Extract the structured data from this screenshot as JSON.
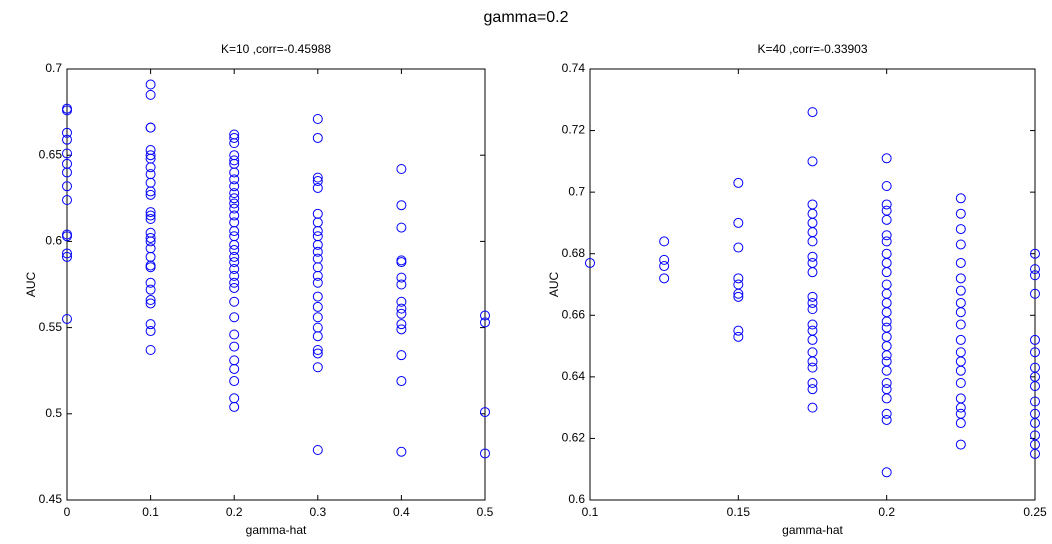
{
  "title": "gamma=0.2",
  "chart_data": [
    {
      "type": "scatter",
      "title": "K=10 ,corr=-0.45988",
      "xlabel": "gamma-hat",
      "ylabel": "AUC",
      "xlim": [
        0,
        0.5
      ],
      "xticks": [
        0,
        0.1,
        0.2,
        0.3,
        0.4,
        0.5
      ],
      "ylim": [
        0.45,
        0.7
      ],
      "yticks": [
        0.45,
        0.5,
        0.55,
        0.6,
        0.65,
        0.7
      ],
      "series": [
        {
          "color": "#0000ff",
          "x": [
            0,
            0,
            0,
            0,
            0,
            0,
            0,
            0,
            0,
            0,
            0,
            0,
            0,
            0,
            0.1,
            0.1,
            0.1,
            0.1,
            0.1,
            0.1,
            0.1,
            0.1,
            0.1,
            0.1,
            0.1,
            0.1,
            0.1,
            0.1,
            0.1,
            0.1,
            0.1,
            0.1,
            0.1,
            0.1,
            0.1,
            0.1,
            0.1,
            0.1,
            0.1,
            0.1,
            0.1,
            0.1,
            0.1,
            0.2,
            0.2,
            0.2,
            0.2,
            0.2,
            0.2,
            0.2,
            0.2,
            0.2,
            0.2,
            0.2,
            0.2,
            0.2,
            0.2,
            0.2,
            0.2,
            0.2,
            0.2,
            0.2,
            0.2,
            0.2,
            0.2,
            0.2,
            0.2,
            0.2,
            0.2,
            0.2,
            0.2,
            0.2,
            0.2,
            0.2,
            0.2,
            0.2,
            0.2,
            0.3,
            0.3,
            0.3,
            0.3,
            0.3,
            0.3,
            0.3,
            0.3,
            0.3,
            0.3,
            0.3,
            0.3,
            0.3,
            0.3,
            0.3,
            0.3,
            0.3,
            0.3,
            0.3,
            0.3,
            0.3,
            0.3,
            0.3,
            0.3,
            0.4,
            0.4,
            0.4,
            0.4,
            0.4,
            0.4,
            0.4,
            0.4,
            0.4,
            0.4,
            0.4,
            0.4,
            0.4,
            0.4,
            0.4,
            0.5,
            0.5,
            0.5,
            0.5
          ],
          "values": [
            0.677,
            0.676,
            0.663,
            0.659,
            0.651,
            0.645,
            0.64,
            0.632,
            0.624,
            0.604,
            0.603,
            0.593,
            0.591,
            0.555,
            0.691,
            0.685,
            0.666,
            0.666,
            0.653,
            0.65,
            0.648,
            0.643,
            0.639,
            0.634,
            0.629,
            0.627,
            0.617,
            0.615,
            0.613,
            0.605,
            0.602,
            0.6,
            0.596,
            0.591,
            0.586,
            0.585,
            0.576,
            0.572,
            0.566,
            0.564,
            0.552,
            0.548,
            0.537,
            0.662,
            0.66,
            0.657,
            0.65,
            0.647,
            0.645,
            0.64,
            0.636,
            0.632,
            0.628,
            0.625,
            0.622,
            0.619,
            0.615,
            0.611,
            0.606,
            0.603,
            0.598,
            0.595,
            0.591,
            0.588,
            0.584,
            0.58,
            0.576,
            0.573,
            0.565,
            0.556,
            0.546,
            0.539,
            0.531,
            0.526,
            0.519,
            0.509,
            0.504,
            0.671,
            0.66,
            0.637,
            0.635,
            0.631,
            0.616,
            0.611,
            0.606,
            0.603,
            0.598,
            0.594,
            0.59,
            0.585,
            0.58,
            0.576,
            0.568,
            0.562,
            0.556,
            0.55,
            0.545,
            0.537,
            0.535,
            0.527,
            0.479,
            0.642,
            0.621,
            0.608,
            0.589,
            0.588,
            0.579,
            0.575,
            0.565,
            0.561,
            0.558,
            0.552,
            0.549,
            0.534,
            0.519,
            0.478,
            0.557,
            0.553,
            0.501,
            0.477
          ]
        }
      ]
    },
    {
      "type": "scatter",
      "title": "K=40 ,corr=-0.33903",
      "xlabel": "gamma-hat",
      "ylabel": "AUC",
      "xlim": [
        0.1,
        0.25
      ],
      "xticks": [
        0.1,
        0.15,
        0.2,
        0.25
      ],
      "ylim": [
        0.6,
        0.74
      ],
      "yticks": [
        0.6,
        0.62,
        0.64,
        0.66,
        0.68,
        0.7,
        0.72,
        0.74
      ],
      "series": [
        {
          "color": "#0000ff",
          "x": [
            0.1,
            0.125,
            0.125,
            0.125,
            0.125,
            0.15,
            0.15,
            0.15,
            0.15,
            0.15,
            0.15,
            0.15,
            0.15,
            0.15,
            0.175,
            0.175,
            0.175,
            0.175,
            0.175,
            0.175,
            0.175,
            0.175,
            0.175,
            0.175,
            0.175,
            0.175,
            0.175,
            0.175,
            0.175,
            0.175,
            0.175,
            0.175,
            0.175,
            0.175,
            0.175,
            0.175,
            0.2,
            0.2,
            0.2,
            0.2,
            0.2,
            0.2,
            0.2,
            0.2,
            0.2,
            0.2,
            0.2,
            0.2,
            0.2,
            0.2,
            0.2,
            0.2,
            0.2,
            0.2,
            0.2,
            0.2,
            0.2,
            0.2,
            0.2,
            0.2,
            0.2,
            0.2,
            0.2,
            0.225,
            0.225,
            0.225,
            0.225,
            0.225,
            0.225,
            0.225,
            0.225,
            0.225,
            0.225,
            0.225,
            0.225,
            0.225,
            0.225,
            0.225,
            0.225,
            0.225,
            0.225,
            0.225,
            0.225,
            0.25,
            0.25,
            0.25,
            0.25,
            0.25,
            0.25,
            0.25,
            0.25,
            0.25,
            0.25,
            0.25,
            0.25,
            0.25,
            0.25,
            0.25
          ],
          "values": [
            0.677,
            0.684,
            0.678,
            0.676,
            0.672,
            0.703,
            0.69,
            0.682,
            0.672,
            0.67,
            0.667,
            0.666,
            0.655,
            0.653,
            0.726,
            0.71,
            0.696,
            0.693,
            0.69,
            0.687,
            0.684,
            0.679,
            0.677,
            0.674,
            0.666,
            0.664,
            0.662,
            0.657,
            0.655,
            0.652,
            0.648,
            0.645,
            0.643,
            0.638,
            0.636,
            0.63,
            0.711,
            0.702,
            0.696,
            0.694,
            0.691,
            0.686,
            0.684,
            0.68,
            0.677,
            0.674,
            0.67,
            0.667,
            0.664,
            0.661,
            0.658,
            0.656,
            0.653,
            0.65,
            0.647,
            0.645,
            0.642,
            0.638,
            0.636,
            0.633,
            0.628,
            0.626,
            0.609,
            0.698,
            0.693,
            0.688,
            0.683,
            0.677,
            0.672,
            0.668,
            0.664,
            0.661,
            0.657,
            0.652,
            0.648,
            0.645,
            0.642,
            0.638,
            0.633,
            0.63,
            0.628,
            0.625,
            0.618,
            0.68,
            0.675,
            0.673,
            0.667,
            0.652,
            0.648,
            0.643,
            0.64,
            0.637,
            0.632,
            0.628,
            0.625,
            0.621,
            0.618,
            0.615
          ]
        }
      ]
    }
  ]
}
